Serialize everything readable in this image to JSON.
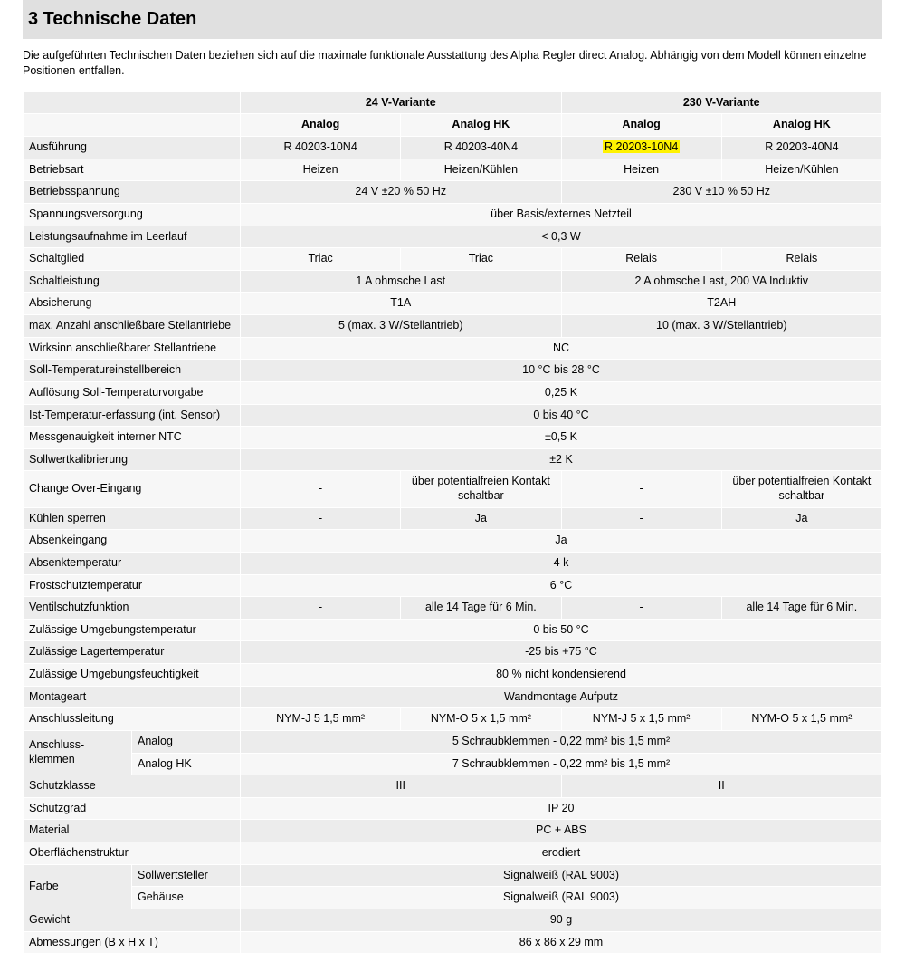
{
  "heading": "3   Technische Daten",
  "intro": "Die aufgeführten Technischen Daten beziehen sich auf die maximale funktionale Ausstattung des Alpha Regler direct Analog. Abhängig von dem Modell können einzelne Positionen entfallen.",
  "head": {
    "v24": "24 V-Variante",
    "v230": "230 V-Variante",
    "analog": "Analog",
    "analoghk": "Analog HK"
  },
  "rows": {
    "ausfuehrung": {
      "l": "Ausführung",
      "c1": "R 40203-10N4",
      "c2": "R 40203-40N4",
      "c3": "R 20203-10N4",
      "c4": "R 20203-40N4",
      "hl3": true
    },
    "betriebsart": {
      "l": "Betriebsart",
      "c1": "Heizen",
      "c2": "Heizen/Kühlen",
      "c3": "Heizen",
      "c4": "Heizen/Kühlen"
    },
    "betriebsspannung": {
      "l": "Betriebsspannung",
      "g24": "24 V ±20 % 50 Hz",
      "g230": "230 V ±10 % 50 Hz"
    },
    "spannungsvers": {
      "l": "Spannungsversorgung",
      "all": "über Basis/externes Netzteil"
    },
    "leistungsaufnahme": {
      "l": "Leistungsaufnahme im Leerlauf",
      "all": "< 0,3 W"
    },
    "schaltglied": {
      "l": "Schaltglied",
      "c1": "Triac",
      "c2": "Triac",
      "c3": "Relais",
      "c4": "Relais"
    },
    "schaltleistung": {
      "l": "Schaltleistung",
      "g24": "1 A ohmsche Last",
      "g230": "2 A ohmsche Last, 200 VA Induktiv"
    },
    "absicherung": {
      "l": "Absicherung",
      "g24": "T1A",
      "g230": "T2AH"
    },
    "maxantriebe": {
      "l": "max. Anzahl anschließbare Stellantriebe",
      "g24": "5 (max. 3 W/Stellantrieb)",
      "g230": "10 (max. 3 W/Stellantrieb)"
    },
    "wirksinn": {
      "l": "Wirksinn anschließbarer Stellantriebe",
      "all": "NC"
    },
    "solltempbereich": {
      "l": "Soll-Temperatureinstellbereich",
      "all": "10 °C bis 28 °C"
    },
    "aufloesung": {
      "l": "Auflösung Soll-Temperaturvorgabe",
      "all": "0,25 K"
    },
    "isttemp": {
      "l": "Ist-Temperatur-erfassung (int. Sensor)",
      "all": "0 bis 40 °C"
    },
    "messgenau": {
      "l": "Messgenauigkeit interner NTC",
      "all": "±0,5 K"
    },
    "sollwertkal": {
      "l": "Sollwertkalibrierung",
      "all": "±2 K"
    },
    "changeover": {
      "l": "Change Over-Eingang",
      "c1": "-",
      "c2": "über potentialfreien Kontakt schaltbar",
      "c3": "-",
      "c4": "über potentialfreien Kontakt schaltbar"
    },
    "kuehlensperren": {
      "l": "Kühlen sperren",
      "c1": "-",
      "c2": "Ja",
      "c3": "-",
      "c4": "Ja"
    },
    "absenkeingang": {
      "l": "Absenkeingang",
      "all": "Ja"
    },
    "absenktemp": {
      "l": "Absenktemperatur",
      "all": "4 k"
    },
    "frostschutz": {
      "l": "Frostschutztemperatur",
      "all": "6 °C"
    },
    "ventilschutz": {
      "l": "Ventilschutzfunktion",
      "c1": "-",
      "c2": "alle 14 Tage für 6 Min.",
      "c3": "-",
      "c4": "alle 14 Tage für 6 Min."
    },
    "umgebungstemp": {
      "l": "Zulässige Umgebungstemperatur",
      "all": "0 bis 50 °C"
    },
    "lagertemp": {
      "l": "Zulässige Lagertemperatur",
      "all": "-25 bis +75 °C"
    },
    "umgebungsfeucht": {
      "l": "Zulässige Umgebungsfeuchtigkeit",
      "all": "80 % nicht kondensierend"
    },
    "montageart": {
      "l": "Montageart",
      "all": "Wandmontage Aufputz"
    },
    "anschlussleitung": {
      "l": "Anschlussleitung",
      "c1": "NYM-J 5 1,5 mm²",
      "c2": "NYM-O 5 x 1,5 mm²",
      "c3": "NYM-J 5 x 1,5 mm²",
      "c4": "NYM-O 5 x 1,5 mm²"
    },
    "anschlussklemmen": {
      "l": "Anschluss­klemmen",
      "sub1": "Analog",
      "sub1v": "5 Schraubklemmen - 0,22 mm² bis 1,5 mm²",
      "sub2": "Analog HK",
      "sub2v": "7 Schraubklemmen - 0,22 mm² bis 1,5 mm²"
    },
    "schutzklasse": {
      "l": "Schutzklasse",
      "g24": "III",
      "g230": "II"
    },
    "schutzgrad": {
      "l": "Schutzgrad",
      "all": "IP 20"
    },
    "material": {
      "l": "Material",
      "all": "PC + ABS"
    },
    "oberflaeche": {
      "l": "Oberflächenstruktur",
      "all": "erodiert"
    },
    "farbe": {
      "l": "Farbe",
      "sub1": "Sollwertsteller",
      "sub1v": "Signalweiß (RAL 9003)",
      "sub2": "Gehäuse",
      "sub2v": "Signalweiß (RAL 9003)"
    },
    "gewicht": {
      "l": "Gewicht",
      "all": "90 g"
    },
    "abmessungen": {
      "l": "Abmessungen (B x H x T)",
      "all": "86 x 86 x 29 mm"
    }
  }
}
